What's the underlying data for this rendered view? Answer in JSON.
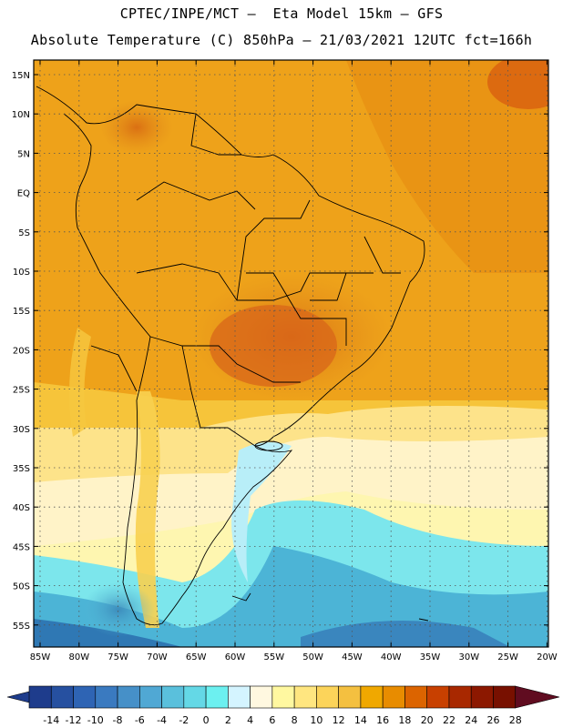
{
  "header": {
    "line1": "CPTEC/INPE/MCT –  Eta Model 15km – GFS",
    "line2": "Absolute Temperature (C) 850hPa – 21/03/2021 12UTC fct=166h"
  },
  "map": {
    "lat_labels": [
      "15N",
      "10N",
      "5N",
      "EQ",
      "5S",
      "10S",
      "15S",
      "20S",
      "25S",
      "30S",
      "35S",
      "40S",
      "45S",
      "50S",
      "55S"
    ],
    "lon_labels": [
      "85W",
      "80W",
      "75W",
      "70W",
      "65W",
      "60W",
      "55W",
      "50W",
      "45W",
      "40W",
      "35W",
      "30W",
      "25W",
      "20W"
    ]
  },
  "colorbar": {
    "ticks": [
      "-14",
      "-12",
      "-10",
      "-8",
      "-6",
      "-4",
      "-2",
      "0",
      "2",
      "4",
      "6",
      "8",
      "10",
      "12",
      "14",
      "16",
      "18",
      "20",
      "22",
      "24",
      "26",
      "28"
    ],
    "colors": [
      "#1e3c8c",
      "#2650a0",
      "#2e64b4",
      "#3a7ac0",
      "#4690c8",
      "#50a8d4",
      "#5ac0dc",
      "#64d8e6",
      "#6cf0f0",
      "#d4f4ff",
      "#fff8e0",
      "#fff8a0",
      "#ffe680",
      "#fcd45a",
      "#f4c040",
      "#f0a800",
      "#e88c00",
      "#dc6400",
      "#c84000",
      "#a82800",
      "#8c1800",
      "#781000",
      "#600c20"
    ]
  }
}
